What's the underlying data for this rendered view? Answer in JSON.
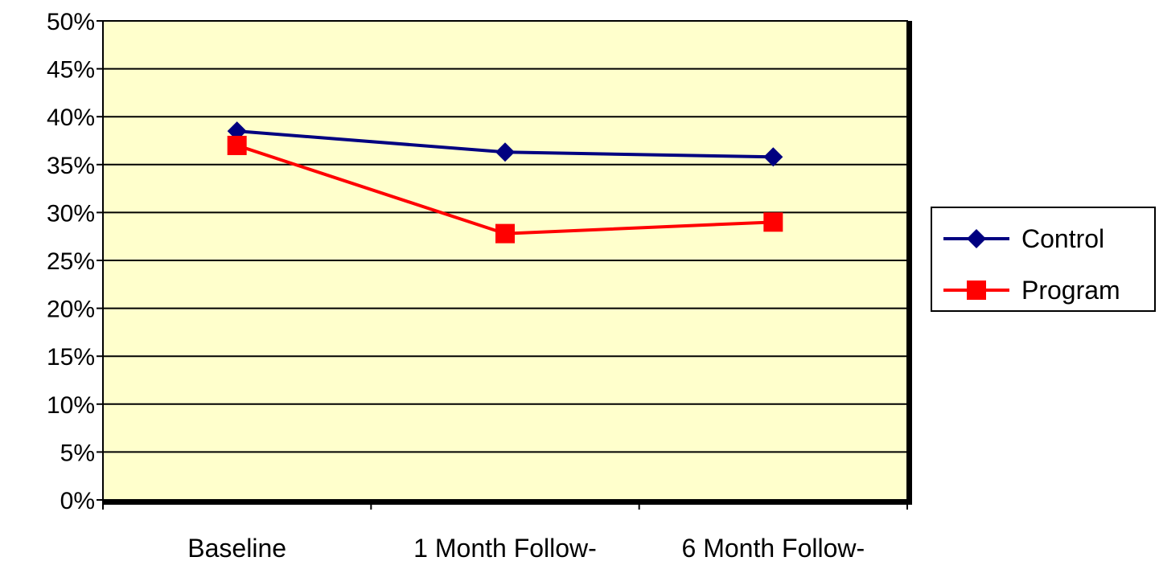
{
  "chart_data": {
    "type": "line",
    "title": "",
    "xlabel": "",
    "ylabel": "",
    "categories": [
      "Baseline",
      "1 Month Follow-",
      "6 Month Follow-"
    ],
    "y_ticks": [
      "0%",
      "5%",
      "10%",
      "15%",
      "20%",
      "25%",
      "30%",
      "35%",
      "40%",
      "45%",
      "50%"
    ],
    "ylim": [
      0,
      50
    ],
    "grid": true,
    "legend_position": "right",
    "plot_background": "#FFFFCC",
    "series": [
      {
        "name": "Control",
        "values": [
          38.5,
          36.3,
          35.8
        ],
        "color": "#000080",
        "marker": "diamond"
      },
      {
        "name": "Program",
        "values": [
          37.0,
          27.8,
          29.0
        ],
        "color": "#FF0000",
        "marker": "square"
      }
    ]
  }
}
